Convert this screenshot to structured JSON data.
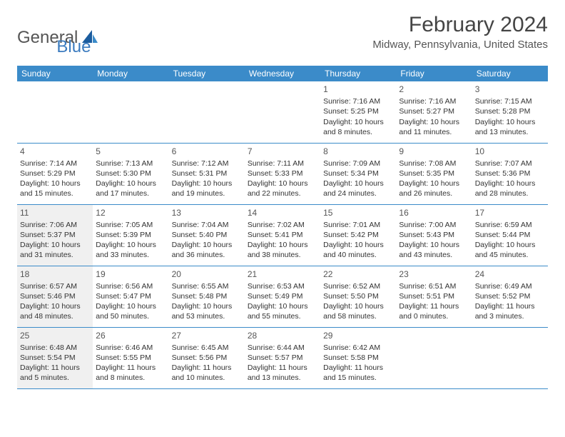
{
  "logo": {
    "part1": "General",
    "part2": "Blue"
  },
  "title": "February 2024",
  "location": "Midway, Pennsylvania, United States",
  "colors": {
    "header_bg": "#3b8bc9",
    "header_text": "#ffffff",
    "accent": "#3b7bbf",
    "border": "#3b8bc9",
    "highlight_bg": "#f0f0f0",
    "text": "#333333"
  },
  "day_headers": [
    "Sunday",
    "Monday",
    "Tuesday",
    "Wednesday",
    "Thursday",
    "Friday",
    "Saturday"
  ],
  "weeks": [
    [
      {
        "blank": true
      },
      {
        "blank": true
      },
      {
        "blank": true
      },
      {
        "blank": true
      },
      {
        "day": "1",
        "sunrise": "Sunrise: 7:16 AM",
        "sunset": "Sunset: 5:25 PM",
        "daylight1": "Daylight: 10 hours",
        "daylight2": "and 8 minutes."
      },
      {
        "day": "2",
        "sunrise": "Sunrise: 7:16 AM",
        "sunset": "Sunset: 5:27 PM",
        "daylight1": "Daylight: 10 hours",
        "daylight2": "and 11 minutes."
      },
      {
        "day": "3",
        "sunrise": "Sunrise: 7:15 AM",
        "sunset": "Sunset: 5:28 PM",
        "daylight1": "Daylight: 10 hours",
        "daylight2": "and 13 minutes."
      }
    ],
    [
      {
        "day": "4",
        "sunrise": "Sunrise: 7:14 AM",
        "sunset": "Sunset: 5:29 PM",
        "daylight1": "Daylight: 10 hours",
        "daylight2": "and 15 minutes."
      },
      {
        "day": "5",
        "sunrise": "Sunrise: 7:13 AM",
        "sunset": "Sunset: 5:30 PM",
        "daylight1": "Daylight: 10 hours",
        "daylight2": "and 17 minutes."
      },
      {
        "day": "6",
        "sunrise": "Sunrise: 7:12 AM",
        "sunset": "Sunset: 5:31 PM",
        "daylight1": "Daylight: 10 hours",
        "daylight2": "and 19 minutes."
      },
      {
        "day": "7",
        "sunrise": "Sunrise: 7:11 AM",
        "sunset": "Sunset: 5:33 PM",
        "daylight1": "Daylight: 10 hours",
        "daylight2": "and 22 minutes."
      },
      {
        "day": "8",
        "sunrise": "Sunrise: 7:09 AM",
        "sunset": "Sunset: 5:34 PM",
        "daylight1": "Daylight: 10 hours",
        "daylight2": "and 24 minutes."
      },
      {
        "day": "9",
        "sunrise": "Sunrise: 7:08 AM",
        "sunset": "Sunset: 5:35 PM",
        "daylight1": "Daylight: 10 hours",
        "daylight2": "and 26 minutes."
      },
      {
        "day": "10",
        "sunrise": "Sunrise: 7:07 AM",
        "sunset": "Sunset: 5:36 PM",
        "daylight1": "Daylight: 10 hours",
        "daylight2": "and 28 minutes."
      }
    ],
    [
      {
        "day": "11",
        "hl": true,
        "sunrise": "Sunrise: 7:06 AM",
        "sunset": "Sunset: 5:37 PM",
        "daylight1": "Daylight: 10 hours",
        "daylight2": "and 31 minutes."
      },
      {
        "day": "12",
        "sunrise": "Sunrise: 7:05 AM",
        "sunset": "Sunset: 5:39 PM",
        "daylight1": "Daylight: 10 hours",
        "daylight2": "and 33 minutes."
      },
      {
        "day": "13",
        "sunrise": "Sunrise: 7:04 AM",
        "sunset": "Sunset: 5:40 PM",
        "daylight1": "Daylight: 10 hours",
        "daylight2": "and 36 minutes."
      },
      {
        "day": "14",
        "sunrise": "Sunrise: 7:02 AM",
        "sunset": "Sunset: 5:41 PM",
        "daylight1": "Daylight: 10 hours",
        "daylight2": "and 38 minutes."
      },
      {
        "day": "15",
        "sunrise": "Sunrise: 7:01 AM",
        "sunset": "Sunset: 5:42 PM",
        "daylight1": "Daylight: 10 hours",
        "daylight2": "and 40 minutes."
      },
      {
        "day": "16",
        "sunrise": "Sunrise: 7:00 AM",
        "sunset": "Sunset: 5:43 PM",
        "daylight1": "Daylight: 10 hours",
        "daylight2": "and 43 minutes."
      },
      {
        "day": "17",
        "sunrise": "Sunrise: 6:59 AM",
        "sunset": "Sunset: 5:44 PM",
        "daylight1": "Daylight: 10 hours",
        "daylight2": "and 45 minutes."
      }
    ],
    [
      {
        "day": "18",
        "hl": true,
        "sunrise": "Sunrise: 6:57 AM",
        "sunset": "Sunset: 5:46 PM",
        "daylight1": "Daylight: 10 hours",
        "daylight2": "and 48 minutes."
      },
      {
        "day": "19",
        "sunrise": "Sunrise: 6:56 AM",
        "sunset": "Sunset: 5:47 PM",
        "daylight1": "Daylight: 10 hours",
        "daylight2": "and 50 minutes."
      },
      {
        "day": "20",
        "sunrise": "Sunrise: 6:55 AM",
        "sunset": "Sunset: 5:48 PM",
        "daylight1": "Daylight: 10 hours",
        "daylight2": "and 53 minutes."
      },
      {
        "day": "21",
        "sunrise": "Sunrise: 6:53 AM",
        "sunset": "Sunset: 5:49 PM",
        "daylight1": "Daylight: 10 hours",
        "daylight2": "and 55 minutes."
      },
      {
        "day": "22",
        "sunrise": "Sunrise: 6:52 AM",
        "sunset": "Sunset: 5:50 PM",
        "daylight1": "Daylight: 10 hours",
        "daylight2": "and 58 minutes."
      },
      {
        "day": "23",
        "sunrise": "Sunrise: 6:51 AM",
        "sunset": "Sunset: 5:51 PM",
        "daylight1": "Daylight: 11 hours",
        "daylight2": "and 0 minutes."
      },
      {
        "day": "24",
        "sunrise": "Sunrise: 6:49 AM",
        "sunset": "Sunset: 5:52 PM",
        "daylight1": "Daylight: 11 hours",
        "daylight2": "and 3 minutes."
      }
    ],
    [
      {
        "day": "25",
        "hl": true,
        "sunrise": "Sunrise: 6:48 AM",
        "sunset": "Sunset: 5:54 PM",
        "daylight1": "Daylight: 11 hours",
        "daylight2": "and 5 minutes."
      },
      {
        "day": "26",
        "sunrise": "Sunrise: 6:46 AM",
        "sunset": "Sunset: 5:55 PM",
        "daylight1": "Daylight: 11 hours",
        "daylight2": "and 8 minutes."
      },
      {
        "day": "27",
        "sunrise": "Sunrise: 6:45 AM",
        "sunset": "Sunset: 5:56 PM",
        "daylight1": "Daylight: 11 hours",
        "daylight2": "and 10 minutes."
      },
      {
        "day": "28",
        "sunrise": "Sunrise: 6:44 AM",
        "sunset": "Sunset: 5:57 PM",
        "daylight1": "Daylight: 11 hours",
        "daylight2": "and 13 minutes."
      },
      {
        "day": "29",
        "sunrise": "Sunrise: 6:42 AM",
        "sunset": "Sunset: 5:58 PM",
        "daylight1": "Daylight: 11 hours",
        "daylight2": "and 15 minutes."
      },
      {
        "blank": true
      },
      {
        "blank": true
      }
    ]
  ]
}
